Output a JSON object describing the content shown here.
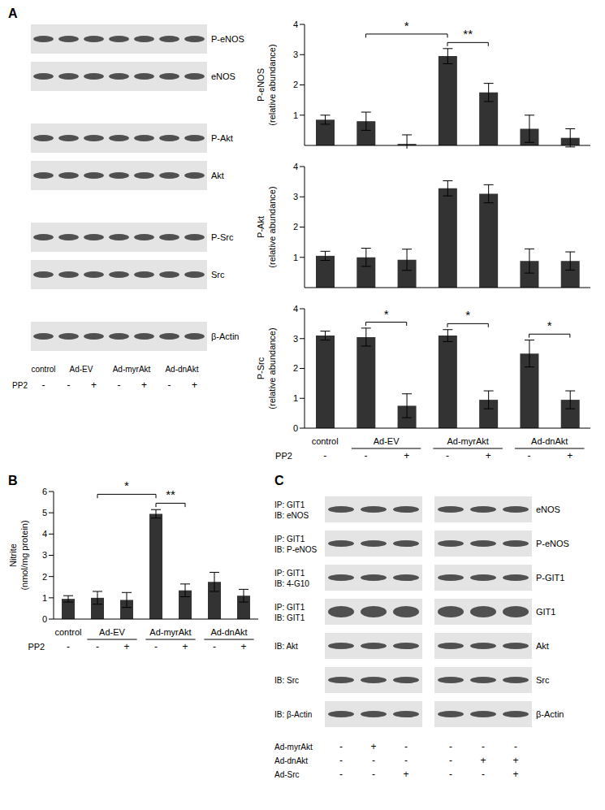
{
  "chart_data": [
    {
      "type": "bar",
      "y_label": [
        "P-eNOS",
        "(relative abundance)"
      ],
      "categories": [
        "-",
        "-",
        "+",
        "-",
        "+",
        "-",
        "+"
      ],
      "values": [
        0.85,
        0.8,
        0.05,
        2.95,
        1.75,
        0.55,
        0.25
      ],
      "errors": [
        0.15,
        0.3,
        0.3,
        0.25,
        0.3,
        0.45,
        0.3
      ],
      "ylim": [
        0,
        4
      ],
      "yticks": [
        0,
        1,
        2,
        3,
        4
      ],
      "color": "#333333",
      "tick_labels": "y",
      "annotations": [
        {
          "from": 3,
          "to": 4,
          "label": "**"
        },
        {
          "from": 1,
          "to": 3,
          "label": "*"
        }
      ]
    },
    {
      "type": "bar",
      "y_label": [
        "P-Akt",
        "(relative abundance)"
      ],
      "categories": [
        "-",
        "-",
        "+",
        "-",
        "+",
        "-",
        "+"
      ],
      "values": [
        1.05,
        1.0,
        0.92,
        3.28,
        3.1,
        0.88,
        0.88
      ],
      "errors": [
        0.15,
        0.3,
        0.35,
        0.25,
        0.3,
        0.4,
        0.3
      ],
      "ylim": [
        0,
        4
      ],
      "yticks": [
        0,
        1,
        2,
        3,
        4
      ],
      "color": "#333333",
      "tick_labels": "y"
    },
    {
      "type": "bar",
      "y_label": [
        "P-Src",
        "(relative abundance)"
      ],
      "categories": [
        "-",
        "-",
        "+",
        "-",
        "+",
        "-",
        "+"
      ],
      "row_label": "PP2",
      "groups": [
        {
          "label": "control",
          "count": 1
        },
        {
          "label": "Ad-EV",
          "count": 2
        },
        {
          "label": "Ad-myrAkt",
          "count": 2
        },
        {
          "label": "Ad-dnAkt",
          "count": 2
        }
      ],
      "values": [
        3.1,
        3.05,
        0.75,
        3.1,
        0.95,
        2.5,
        0.95
      ],
      "errors": [
        0.15,
        0.3,
        0.4,
        0.2,
        0.3,
        0.45,
        0.3
      ],
      "ylim": [
        0,
        4
      ],
      "yticks": [
        0,
        1,
        2,
        3,
        4
      ],
      "color": "#333333",
      "annotations": [
        {
          "from": 1,
          "to": 2,
          "label": "*"
        },
        {
          "from": 3,
          "to": 4,
          "label": "*"
        },
        {
          "from": 5,
          "to": 6,
          "label": "*"
        }
      ]
    },
    {
      "type": "bar",
      "panel": "B",
      "y_label": [
        "Nitrite",
        "(nmol/mg protein)"
      ],
      "categories": [
        "-",
        "-",
        "+",
        "-",
        "+",
        "-",
        "+"
      ],
      "row_label": "PP2",
      "groups": [
        {
          "label": "control",
          "count": 1
        },
        {
          "label": "Ad-EV",
          "count": 2
        },
        {
          "label": "Ad-myrAkt",
          "count": 2
        },
        {
          "label": "Ad-dnAkt",
          "count": 2
        }
      ],
      "values": [
        0.95,
        1.0,
        0.9,
        4.95,
        1.35,
        1.75,
        1.1
      ],
      "errors": [
        0.15,
        0.3,
        0.35,
        0.2,
        0.3,
        0.45,
        0.3
      ],
      "ylim": [
        0,
        6
      ],
      "yticks": [
        0,
        1,
        2,
        3,
        4,
        5,
        6
      ],
      "color": "#333333",
      "annotations": [
        {
          "from": 3,
          "to": 4,
          "label": "**"
        },
        {
          "from": 1,
          "to": 3,
          "label": "*"
        }
      ]
    }
  ],
  "blots": [
    {
      "panel": "A",
      "row_groups": [
        [
          "P-eNOS",
          "eNOS"
        ],
        [
          "P-Akt",
          "Akt"
        ],
        [
          "P-Src",
          "Src"
        ],
        [
          "β-Actin"
        ]
      ],
      "groups": [
        {
          "label": "control",
          "count": 1
        },
        {
          "label": "Ad-EV",
          "count": 2
        },
        {
          "label": "Ad-myrAkt",
          "count": 2
        },
        {
          "label": "Ad-dnAkt",
          "count": 2
        }
      ],
      "row_label": "PP2",
      "lanes": [
        "-",
        "-",
        "+",
        "-",
        "+",
        "-",
        "+"
      ]
    },
    {
      "panel": "C",
      "rows": [
        {
          "left": [
            "IP: GIT1",
            "IB: eNOS"
          ],
          "right": "eNOS"
        },
        {
          "left": [
            "IP: GIT1",
            "IB: P-eNOS"
          ],
          "right": "P-eNOS"
        },
        {
          "left": [
            "IP: GIT1",
            "IB: 4-G10"
          ],
          "right": "P-GIT1"
        },
        {
          "left": [
            "IP: GIT1",
            "IB: GIT1"
          ],
          "right": "GIT1"
        },
        {
          "left": [
            "IB: Akt"
          ],
          "right": "Akt"
        },
        {
          "left": [
            "IB: Src"
          ],
          "right": "Src"
        },
        {
          "left": [
            "IB: β-Actin"
          ],
          "right": "β-Actin"
        }
      ],
      "conditions": [
        {
          "label": "Ad-myrAkt",
          "lanes": [
            "-",
            "+",
            "-",
            "-",
            "-",
            "-"
          ]
        },
        {
          "label": "Ad-dnAkt",
          "lanes": [
            "-",
            "-",
            "-",
            "-",
            "+",
            "+"
          ]
        },
        {
          "label": "Ad-Src",
          "lanes": [
            "-",
            "-",
            "+",
            "-",
            "-",
            "+"
          ]
        }
      ]
    }
  ]
}
